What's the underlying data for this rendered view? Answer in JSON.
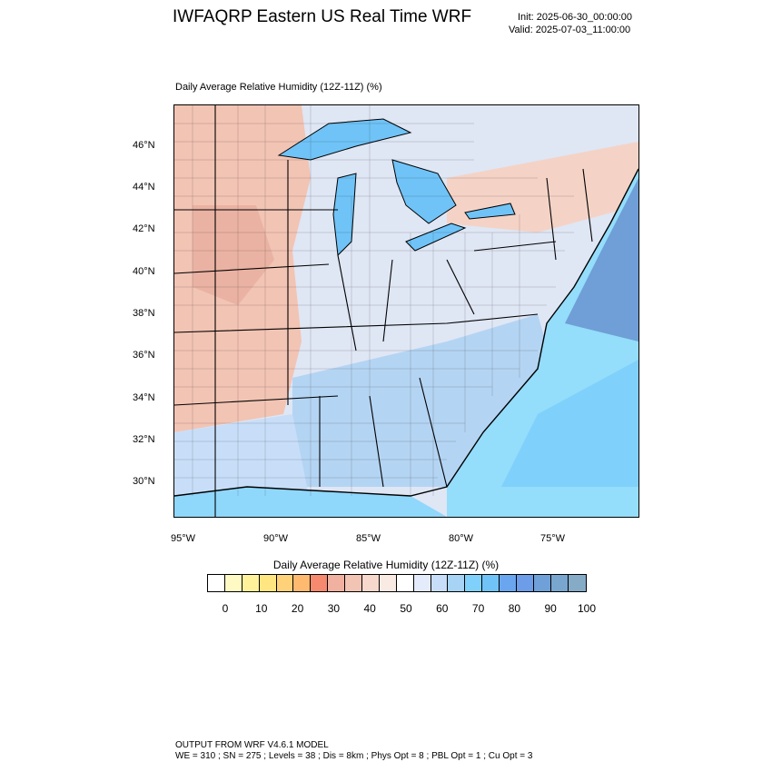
{
  "header": {
    "title": "IWFAQRP Eastern US Real Time WRF",
    "init": "Init: 2025-06-30_00:00:00",
    "valid": "Valid: 2025-07-03_11:00:00"
  },
  "panel": {
    "title": "Daily Average Relative Humidity (12Z-11Z)   (%)"
  },
  "axes": {
    "lat_labels": [
      "46°N",
      "44°N",
      "42°N",
      "40°N",
      "38°N",
      "36°N",
      "34°N",
      "32°N",
      "30°N"
    ],
    "lon_labels": [
      "95°W",
      "90°W",
      "85°W",
      "80°W",
      "75°W"
    ]
  },
  "legend": {
    "title": "Daily Average Relative Humidity (12Z-11Z)  (%)",
    "colors": [
      "#ffffff",
      "#fff9c4",
      "#fff29a",
      "#ffe680",
      "#ffd27a",
      "#ffba70",
      "#f58a6e",
      "#f1b1a0",
      "#f2c4b4",
      "#f6d8cc",
      "#faeae4",
      "#ffffff",
      "#e4ecfb",
      "#c8def8",
      "#a7d3f5",
      "#7fd1fb",
      "#6fc3f7",
      "#6aa6f0",
      "#6d9ce8",
      "#6fa0d8",
      "#79a6cf",
      "#86abc7"
    ],
    "labels": [
      "0",
      "10",
      "20",
      "30",
      "40",
      "50",
      "60",
      "70",
      "80",
      "90",
      "100"
    ]
  },
  "footer": {
    "line1": "OUTPUT FROM WRF V4.6.1 MODEL",
    "line2": "WE = 310 ; SN = 275 ; Levels = 38 ; Dis = 8km ; Phys Opt = 8 ; PBL Opt = 1 ; Cu Opt = 3"
  },
  "map_fill_colors": {
    "ocean_deep": "#79a6cf",
    "ocean_mid": "#7fd1fb",
    "ocean_shallow": "#94ddfb",
    "land_dry": "#f2c4b4",
    "land_moist": "#c8def8",
    "lakes": "#6fc3f7"
  }
}
